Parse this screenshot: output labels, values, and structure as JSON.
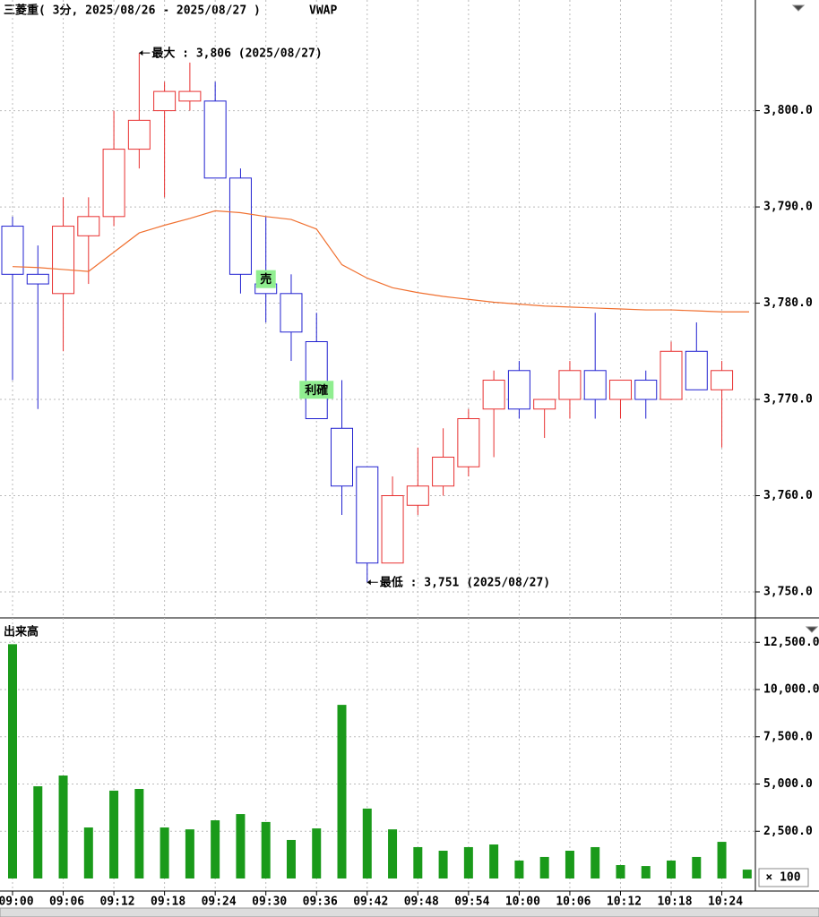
{
  "chart_data": [
    {
      "type": "candlestick",
      "title": "三菱重( 3分, 2025/08/26 - 2025/08/27 )",
      "categories": [
        "09:00",
        null,
        "09:06",
        null,
        "09:12",
        null,
        "09:18",
        null,
        "09:24",
        null,
        "09:30",
        null,
        "09:36",
        null,
        "09:42",
        null,
        "09:48",
        null,
        "09:54",
        null,
        "10:00",
        null,
        "10:06",
        null,
        "10:12",
        null,
        "10:18",
        null,
        "10:24",
        null
      ],
      "open": [
        3788,
        3783,
        3781,
        3787,
        3789,
        3796,
        3800,
        3801,
        3801,
        3793,
        3782,
        3781,
        3776,
        3767,
        3763,
        3753,
        3759,
        3761,
        3763,
        3769,
        3773,
        3769,
        3770,
        3773,
        3770,
        3772,
        3770,
        3775,
        3771,
        null
      ],
      "high": [
        3789,
        3786,
        3791,
        3791,
        3800,
        3806,
        3803,
        3805,
        3803,
        3794,
        3789,
        3783,
        3779,
        3772,
        3763,
        3762,
        3765,
        3767,
        3769,
        3773,
        3774,
        3770,
        3774,
        3779,
        3772,
        3773,
        3776,
        3778,
        3774,
        null
      ],
      "low": [
        3772,
        3769,
        3775,
        3782,
        3788,
        3794,
        3791,
        3800,
        3793,
        3781,
        3778,
        3774,
        3768,
        3758,
        3751,
        3753,
        3758,
        3760,
        3762,
        3764,
        3768,
        3766,
        3768,
        3768,
        3768,
        3768,
        3770,
        3771,
        3765,
        null
      ],
      "close": [
        3783,
        3782,
        3788,
        3789,
        3796,
        3799,
        3802,
        3802,
        3793,
        3783,
        3781,
        3777,
        3768,
        3761,
        3753,
        3760,
        3761,
        3764,
        3768,
        3772,
        3769,
        3770,
        3773,
        3770,
        3772,
        3770,
        3775,
        3771,
        3773,
        null
      ],
      "up_color": "#e83030",
      "down_color": "#2020d0",
      "series": [
        {
          "name": "VWAP",
          "color": "#f07030",
          "values": [
            3783.8,
            3783.7,
            3783.5,
            3783.3,
            3785.3,
            3787.3,
            3788.1,
            3788.8,
            3789.6,
            3789.4,
            3789.0,
            3788.7,
            3787.7,
            3784.0,
            3782.6,
            3781.6,
            3781.1,
            3780.7,
            3780.4,
            3780.1,
            3779.9,
            3779.7,
            3779.6,
            3779.5,
            3779.4,
            3779.3,
            3779.3,
            3779.2,
            3779.1,
            3779.1
          ]
        }
      ],
      "annotations": [
        {
          "label": "最大 : 3,806 (2025/08/27)",
          "y": 3806,
          "kind": "high"
        },
        {
          "label": "最低 : 3,751 (2025/08/27)",
          "y": 3751,
          "kind": "low"
        }
      ],
      "markers": [
        {
          "label": "売",
          "x": "09:30",
          "y": 3782.5,
          "color": "#90ee90"
        },
        {
          "label": "利確",
          "x": "09:36",
          "y": 3771,
          "color": "#90ee90"
        }
      ],
      "ylim": [
        3747.3,
        3811.5
      ],
      "yticks": [
        {
          "value": 3750,
          "label": "3,750.0"
        },
        {
          "value": 3760,
          "label": "3,760.0"
        },
        {
          "value": 3770,
          "label": "3,770.0"
        },
        {
          "value": 3780,
          "label": "3,780.0"
        },
        {
          "value": 3790,
          "label": "3,790.0"
        },
        {
          "value": 3800,
          "label": "3,800.0"
        }
      ],
      "grid": true
    },
    {
      "type": "bar",
      "title": "出来高",
      "unit_label": "× 100",
      "color": "#1a9a1a",
      "values": [
        12400,
        4880,
        5450,
        2700,
        4650,
        4740,
        2700,
        2600,
        3080,
        3410,
        2990,
        2040,
        2650,
        9190,
        3700,
        2600,
        1660,
        1470,
        1660,
        1800,
        950,
        1140,
        1470,
        1660,
        710,
        660,
        950,
        1140,
        1940,
        470
      ],
      "ylim": [
        0,
        13650
      ],
      "yticks": [
        {
          "value": 2500,
          "label": "2,500.0"
        },
        {
          "value": 5000,
          "label": "5,000.0"
        },
        {
          "value": 7500,
          "label": "7,500.0"
        },
        {
          "value": 10000,
          "label": "10,000.0"
        },
        {
          "value": 12500,
          "label": "12,500.0"
        }
      ],
      "grid": true
    }
  ]
}
